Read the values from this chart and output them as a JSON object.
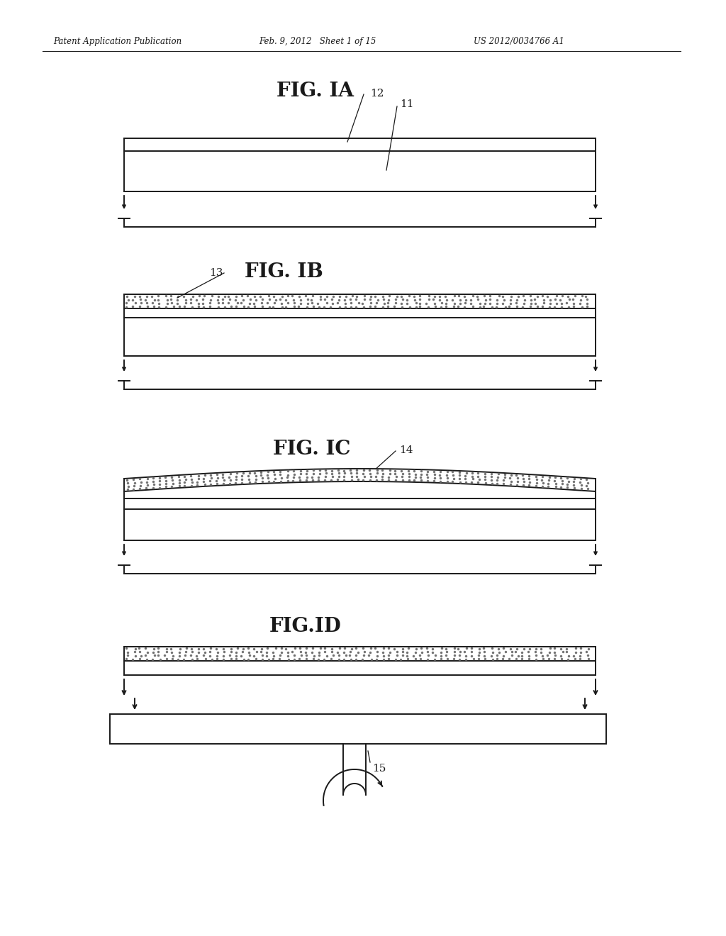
{
  "header_left": "Patent Application Publication",
  "header_mid": "Feb. 9, 2012   Sheet 1 of 15",
  "header_right": "US 2012/0034766 A1",
  "fig1a_title": "FIG. IA",
  "fig1b_title": "FIG. IB",
  "fig1c_title": "FIG. IC",
  "fig1d_title": "FIG.ID",
  "label_11": "11",
  "label_12": "12",
  "label_13": "13",
  "label_14": "14",
  "label_15": "15",
  "bg_color": "#ffffff",
  "line_color": "#1a1a1a",
  "stipple_color": "#666666"
}
